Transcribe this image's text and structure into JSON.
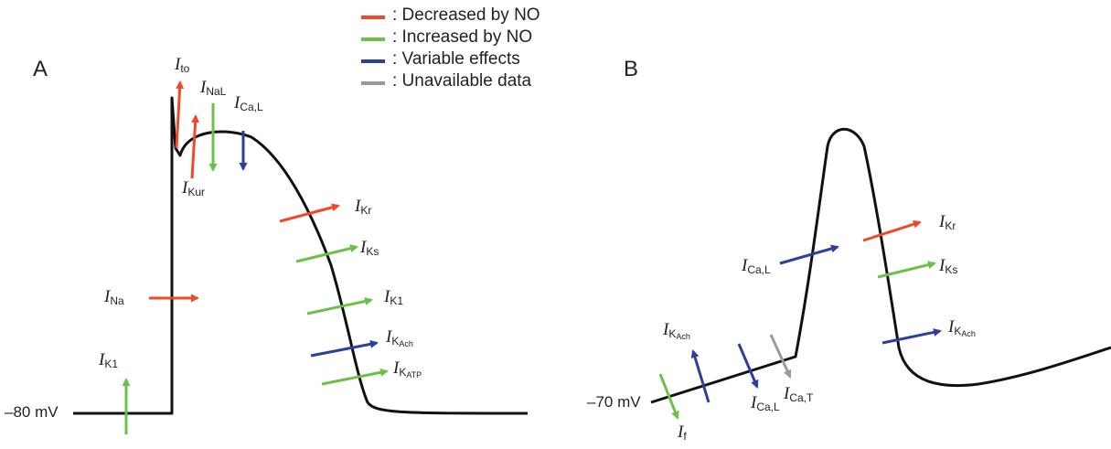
{
  "legend": [
    {
      "color": "#ee4a29",
      "text": ": Decreased by NO"
    },
    {
      "color": "#6cc04a",
      "text": ": Increased by NO"
    },
    {
      "color": "#2b3f9c",
      "text": ": Variable effects"
    },
    {
      "color": "#9a9a9a",
      "text": ": Unavailable data"
    }
  ],
  "panelA": {
    "label": "A",
    "baseline": "–80 mV",
    "currents": {
      "ito": {
        "i": "I",
        "sub": "to"
      },
      "inal": {
        "i": "I",
        "sub": "NaL"
      },
      "ical": {
        "i": "I",
        "sub": "Ca,L"
      },
      "ikur": {
        "i": "I",
        "sub": "Kur"
      },
      "ikr": {
        "i": "I",
        "sub": "Kr"
      },
      "iks": {
        "i": "I",
        "sub": "Ks"
      },
      "ina": {
        "i": "I",
        "sub": "Na"
      },
      "ik1a": {
        "i": "I",
        "sub": "K1"
      },
      "ik1b": {
        "i": "I",
        "sub": "K1"
      },
      "ikach": {
        "i": "I",
        "sub": "K",
        "subsub": "Ach"
      },
      "ikatp": {
        "i": "I",
        "sub": "K",
        "subsub": "ATP"
      }
    }
  },
  "panelB": {
    "label": "B",
    "baseline": "–70 mV",
    "currents": {
      "ical1": {
        "i": "I",
        "sub": "Ca,L"
      },
      "ikr": {
        "i": "I",
        "sub": "Kr"
      },
      "iks": {
        "i": "I",
        "sub": "Ks"
      },
      "ikach1": {
        "i": "I",
        "sub": "K",
        "subsub": "Ach"
      },
      "ikach2": {
        "i": "I",
        "sub": "K",
        "subsub": "Ach"
      },
      "ical2": {
        "i": "I",
        "sub": "Ca,L"
      },
      "icat": {
        "i": "I",
        "sub": "Ca,T"
      },
      "if": {
        "i": "I",
        "sub": "f"
      }
    }
  }
}
